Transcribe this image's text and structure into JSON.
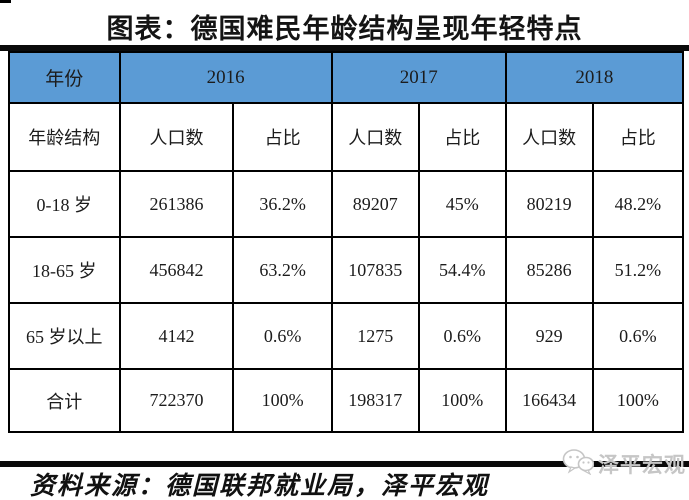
{
  "page": {
    "title": "图表：德国难民年龄结构呈现年轻特点",
    "source_note": "资料来源：德国联邦就业局，泽平宏观",
    "watermark_text": "泽平宏观",
    "watermark_icon": "wechat-logo-icon"
  },
  "colors": {
    "header_blue": "#5B9BD5",
    "border_black": "#000000",
    "watermark_gray": "#c6c6c6",
    "background": "#ffffff"
  },
  "chart_data": {
    "type": "table",
    "title": "图表：德国难民年龄结构呈现年轻特点",
    "corner_label": "年份",
    "row_header_label": "年龄结构",
    "year_groups": [
      "2016",
      "2017",
      "2018"
    ],
    "subheaders": [
      "人口数",
      "占比"
    ],
    "rows": [
      {
        "label": "0-18 岁",
        "values": [
          "261386",
          "36.2%",
          "89207",
          "45%",
          "80219",
          "48.2%"
        ]
      },
      {
        "label": "18-65 岁",
        "values": [
          "456842",
          "63.2%",
          "107835",
          "54.4%",
          "85286",
          "51.2%"
        ]
      },
      {
        "label": "65 岁以上",
        "values": [
          "4142",
          "0.6%",
          "1275",
          "0.6%",
          "929",
          "0.6%"
        ]
      },
      {
        "label": "合计",
        "values": [
          "722370",
          "100%",
          "198317",
          "100%",
          "166434",
          "100%"
        ]
      }
    ],
    "source": "资料来源：德国联邦就业局，泽平宏观"
  }
}
